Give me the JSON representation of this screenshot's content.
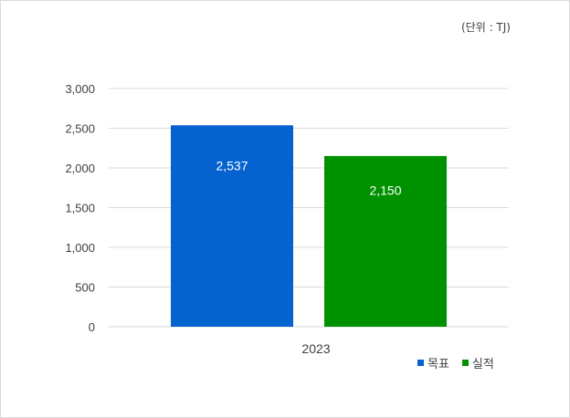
{
  "unit_label": "(단위 : TJ)",
  "chart_data": {
    "type": "bar",
    "categories": [
      "2023"
    ],
    "series": [
      {
        "name": "목표",
        "values": [
          2537
        ],
        "labels": [
          "2,537"
        ],
        "color": "#0563d0"
      },
      {
        "name": "실적",
        "values": [
          2150
        ],
        "labels": [
          "2,150"
        ],
        "color": "#009100"
      }
    ],
    "y_ticks": [
      "0",
      "500",
      "1,000",
      "1,500",
      "2,000",
      "2,500",
      "3,000"
    ],
    "ylim": [
      0,
      3000
    ],
    "grid": true,
    "legend_position": "bottom-right",
    "gridline_color": "#d9d9d9",
    "data_label_color": "#ffffff"
  }
}
